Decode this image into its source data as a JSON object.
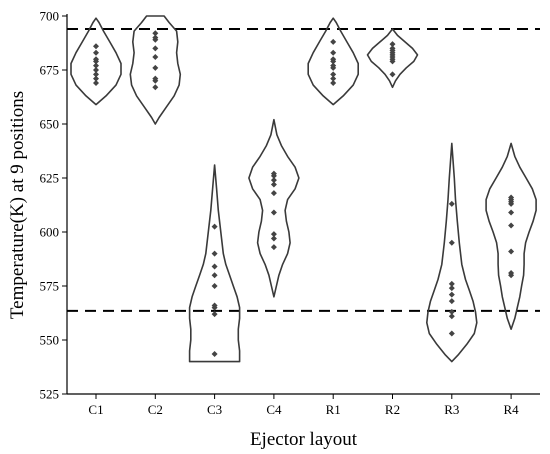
{
  "chart_data": {
    "type": "violin",
    "title": "",
    "xlabel": "Ejector layout",
    "ylabel": "Temperature(K) at 9 positions",
    "ylim": [
      525,
      700
    ],
    "yticks": [
      525,
      550,
      575,
      600,
      625,
      650,
      675,
      700
    ],
    "categories": [
      "C1",
      "C2",
      "C3",
      "C4",
      "R1",
      "R2",
      "R3",
      "R4"
    ],
    "reference_lines": [
      694,
      563.5
    ],
    "grid": false,
    "series": [
      {
        "category": "C1",
        "points": [
          669,
          671,
          673,
          675,
          677,
          679,
          680,
          683,
          686
        ],
        "profile": [
          [
            659,
            0
          ],
          [
            663,
            0.4
          ],
          [
            668,
            0.8
          ],
          [
            673,
            1.0
          ],
          [
            678,
            1.0
          ],
          [
            683,
            0.8
          ],
          [
            688,
            0.55
          ],
          [
            693,
            0.3
          ],
          [
            697,
            0.12
          ],
          [
            699,
            0
          ]
        ]
      },
      {
        "category": "C2",
        "points": [
          667,
          670,
          671,
          676,
          681,
          685,
          689,
          690,
          692
        ],
        "profile": [
          [
            650,
            0
          ],
          [
            653,
            0.15
          ],
          [
            658,
            0.45
          ],
          [
            663,
            0.75
          ],
          [
            668,
            0.95
          ],
          [
            673,
            1.0
          ],
          [
            678,
            0.9
          ],
          [
            683,
            0.85
          ],
          [
            688,
            0.9
          ],
          [
            693,
            0.85
          ],
          [
            697,
            0.55
          ],
          [
            700,
            0.35
          ],
          [
            700,
            0
          ]
        ]
      },
      {
        "category": "C3",
        "points": [
          543.5,
          562,
          565,
          566,
          575,
          580,
          584,
          590,
          602.5
        ],
        "profile": [
          [
            540,
            0
          ],
          [
            540,
            1.0
          ],
          [
            545,
            1.0
          ],
          [
            550,
            0.95
          ],
          [
            555,
            0.95
          ],
          [
            560,
            1.0
          ],
          [
            565,
            1.0
          ],
          [
            570,
            0.9
          ],
          [
            575,
            0.75
          ],
          [
            580,
            0.6
          ],
          [
            585,
            0.45
          ],
          [
            590,
            0.35
          ],
          [
            600,
            0.25
          ],
          [
            610,
            0.15
          ],
          [
            620,
            0.08
          ],
          [
            631,
            0
          ]
        ]
      },
      {
        "category": "C4",
        "points": [
          593,
          597,
          599,
          609,
          618,
          622,
          624,
          626,
          627
        ],
        "profile": [
          [
            570,
            0
          ],
          [
            575,
            0.1
          ],
          [
            580,
            0.2
          ],
          [
            585,
            0.35
          ],
          [
            590,
            0.55
          ],
          [
            595,
            0.65
          ],
          [
            600,
            0.6
          ],
          [
            605,
            0.5
          ],
          [
            610,
            0.45
          ],
          [
            615,
            0.55
          ],
          [
            620,
            0.85
          ],
          [
            625,
            1.0
          ],
          [
            630,
            0.85
          ],
          [
            635,
            0.55
          ],
          [
            640,
            0.3
          ],
          [
            645,
            0.12
          ],
          [
            652,
            0
          ]
        ]
      },
      {
        "category": "R1",
        "points": [
          669,
          671,
          673,
          676,
          677,
          679,
          680,
          683,
          688
        ],
        "profile": [
          [
            659,
            0
          ],
          [
            663,
            0.4
          ],
          [
            668,
            0.8
          ],
          [
            673,
            1.0
          ],
          [
            678,
            1.0
          ],
          [
            683,
            0.8
          ],
          [
            688,
            0.55
          ],
          [
            693,
            0.3
          ],
          [
            697,
            0.12
          ],
          [
            699,
            0
          ]
        ]
      },
      {
        "category": "R2",
        "points": [
          673,
          679,
          680,
          681,
          682,
          683,
          684,
          685,
          687
        ],
        "profile": [
          [
            667,
            0
          ],
          [
            670,
            0.12
          ],
          [
            673,
            0.3
          ],
          [
            676,
            0.55
          ],
          [
            679,
            0.85
          ],
          [
            682,
            1.0
          ],
          [
            685,
            0.8
          ],
          [
            688,
            0.5
          ],
          [
            691,
            0.2
          ],
          [
            694,
            0
          ]
        ]
      },
      {
        "category": "R3",
        "points": [
          553,
          561,
          563,
          568,
          571,
          574,
          576,
          595,
          613
        ],
        "profile": [
          [
            540,
            0
          ],
          [
            543,
            0.25
          ],
          [
            548,
            0.6
          ],
          [
            553,
            0.9
          ],
          [
            558,
            1.0
          ],
          [
            563,
            0.95
          ],
          [
            568,
            0.85
          ],
          [
            573,
            0.7
          ],
          [
            578,
            0.55
          ],
          [
            585,
            0.4
          ],
          [
            595,
            0.3
          ],
          [
            605,
            0.22
          ],
          [
            615,
            0.15
          ],
          [
            625,
            0.1
          ],
          [
            641,
            0
          ]
        ]
      },
      {
        "category": "R4",
        "points": [
          580,
          581,
          591,
          603,
          609,
          613,
          614,
          615,
          616
        ],
        "profile": [
          [
            555,
            0
          ],
          [
            560,
            0.15
          ],
          [
            565,
            0.25
          ],
          [
            570,
            0.35
          ],
          [
            575,
            0.42
          ],
          [
            580,
            0.5
          ],
          [
            585,
            0.52
          ],
          [
            590,
            0.52
          ],
          [
            595,
            0.58
          ],
          [
            600,
            0.72
          ],
          [
            605,
            0.88
          ],
          [
            610,
            1.0
          ],
          [
            615,
            1.0
          ],
          [
            620,
            0.85
          ],
          [
            625,
            0.6
          ],
          [
            630,
            0.35
          ],
          [
            635,
            0.15
          ],
          [
            641,
            0
          ]
        ]
      }
    ]
  }
}
